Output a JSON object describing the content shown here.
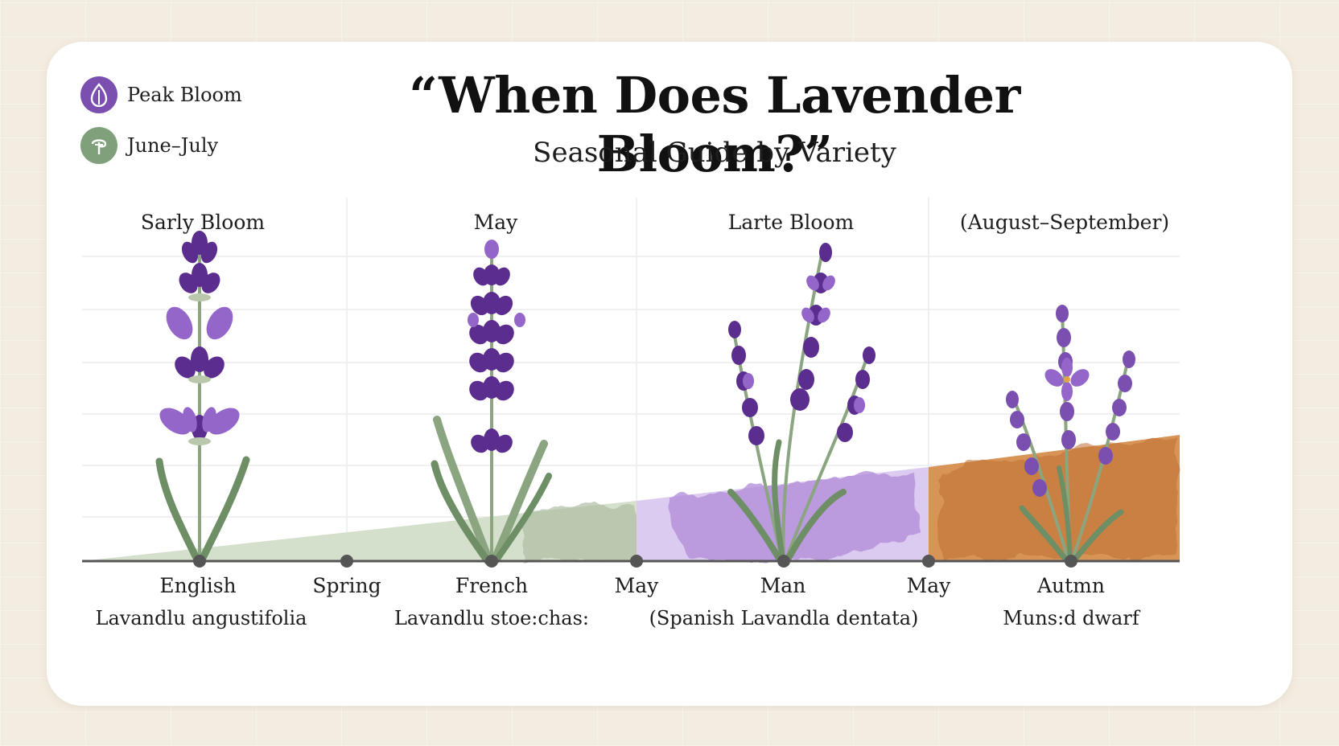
{
  "header": {
    "title": "“When Does Lavender Bloom?”",
    "subtitle": "Seasonal Guide by Variety"
  },
  "legend": [
    {
      "label": "Peak Bloom",
      "icon": "lavender-drop-icon",
      "color": "#7a4fb0"
    },
    {
      "label": "June–July",
      "icon": "sun-leaf-icon",
      "color": "#7fa07a"
    }
  ],
  "columns": [
    {
      "heading": "Sarly Bloom"
    },
    {
      "heading": "May"
    },
    {
      "heading": "Larte Bloom"
    },
    {
      "heading": "(August–September)"
    }
  ],
  "timeline": {
    "markers": [
      {
        "label": "English",
        "sublabel": "Lavandlu angustifolia"
      },
      {
        "label": "Spring",
        "sublabel": ""
      },
      {
        "label": "French",
        "sublabel": "Lavandlu stoe:chas:"
      },
      {
        "label": "May",
        "sublabel": ""
      },
      {
        "label": "Man",
        "sublabel": "(Spanish Lavandla dentata)"
      },
      {
        "label": "May",
        "sublabel": ""
      },
      {
        "label": "Autmn",
        "sublabel": "Muns:d dwarf"
      }
    ]
  },
  "colors": {
    "lavender_dark": "#5b2d8f",
    "lavender_light": "#9466c9",
    "stem": "#8aa57f",
    "green_band": "#c5d3bc",
    "purple_band": "#c2a6e2",
    "orange_band": "#c97a3a"
  }
}
